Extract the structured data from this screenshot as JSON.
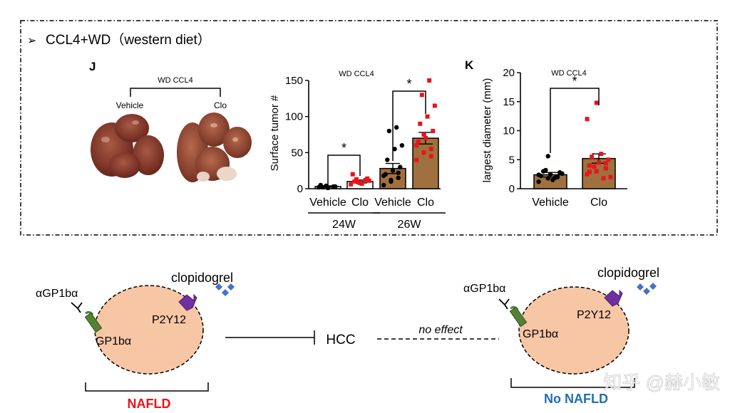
{
  "header": {
    "bullet": "➢",
    "title": "CCL4+WD（western diet）"
  },
  "panel_j": {
    "letter": "J",
    "photo": {
      "group_label": "WD CCL4",
      "left_label": "Vehicle",
      "right_label": "Clo"
    }
  },
  "panel_k": {
    "letter": "K"
  },
  "chart_data": [
    {
      "type": "bar",
      "title": "WD CCL4",
      "ylabel": "Surface tumor #",
      "ylim": [
        0,
        150
      ],
      "yticks": [
        "0",
        "50",
        "100",
        "150"
      ],
      "categories": [
        "Vehicle",
        "Clo",
        "Vehicle",
        "Clo"
      ],
      "groups": [
        {
          "label": "24W",
          "span": [
            0,
            1
          ]
        },
        {
          "label": "26W",
          "span": [
            2,
            3
          ]
        }
      ],
      "values": [
        3,
        10,
        28,
        70
      ],
      "errors": [
        1,
        2,
        7,
        8
      ],
      "bar_colors": [
        "#ffffff",
        "#ffffff",
        "#a0703e",
        "#a0703e"
      ],
      "point_colors": [
        "#000000",
        "#e8141b",
        "#000000",
        "#e8141b"
      ],
      "points": [
        [
          2,
          4,
          3,
          5,
          1,
          3,
          2
        ],
        [
          6,
          9,
          12,
          20,
          8,
          14,
          10,
          7,
          11,
          13
        ],
        [
          5,
          10,
          15,
          20,
          25,
          30,
          40,
          55,
          60,
          80,
          85,
          18,
          12,
          22
        ],
        [
          40,
          50,
          55,
          65,
          70,
          80,
          90,
          100,
          115,
          130,
          160,
          60,
          75,
          45
        ]
      ],
      "significance": [
        {
          "between": [
            0,
            1
          ],
          "label": "*"
        },
        {
          "between": [
            2,
            3
          ],
          "label": "*"
        }
      ]
    },
    {
      "type": "bar",
      "title": "WD CCL4",
      "ylabel": "largest diameter (mm)",
      "ylim": [
        0,
        20
      ],
      "yticks": [
        "0",
        "5",
        "10",
        "15",
        "20"
      ],
      "categories": [
        "Vehicle",
        "Clo"
      ],
      "values": [
        2.4,
        5.2
      ],
      "errors": [
        0.4,
        0.8
      ],
      "bar_colors": [
        "#a0703e",
        "#a0703e"
      ],
      "point_colors": [
        "#000000",
        "#e8141b"
      ],
      "points": [
        [
          1.2,
          1.8,
          2.0,
          2.2,
          2.5,
          2.8,
          3.0,
          1.5,
          2.6,
          3.2,
          1.9,
          2.4,
          5.6,
          2.1
        ],
        [
          2.5,
          3.0,
          3.5,
          4.0,
          4.5,
          5.0,
          5.5,
          6.0,
          2.0,
          3.8,
          1.8,
          12.0,
          14.8,
          4.4,
          2.9
        ]
      ],
      "significance": [
        {
          "between": [
            0,
            1
          ],
          "label": "*"
        }
      ]
    }
  ],
  "diagram": {
    "left": {
      "antibody": "αGP1bα",
      "drug": "clopidogrel",
      "receptor": "P2Y12",
      "target": "GP1bα",
      "caption": "NAFLD",
      "caption_color": "#e8141b"
    },
    "effect_target": "HCC",
    "no_effect": "no effect",
    "right": {
      "antibody": "αGP1bα",
      "drug": "clopidogrel",
      "receptor": "P2Y12",
      "target": "GP1bα",
      "caption": "No NAFLD",
      "caption_color": "#1f6fb5"
    },
    "colors": {
      "cell": "#f7c6a5",
      "gp1b": "#548235",
      "p2y12": "#7030a0",
      "drug": "#4472c4"
    }
  },
  "watermark": "知乎 @赫小敏"
}
